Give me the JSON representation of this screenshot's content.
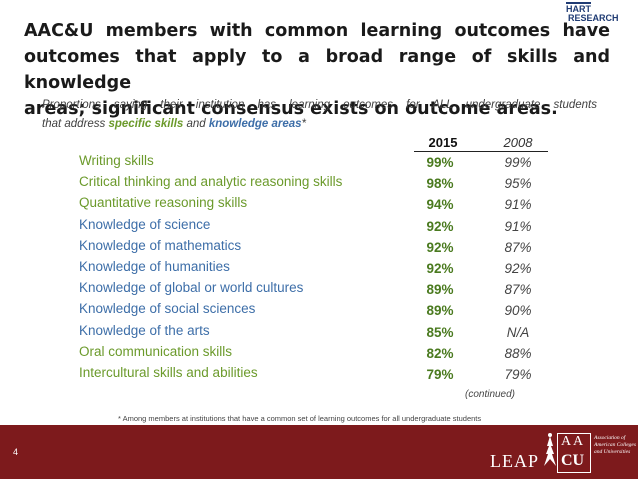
{
  "title": {
    "line1": "AAC&U members with common learning outcomes have",
    "line2": "outcomes that apply to a broad range of skills and knowledge",
    "line3": "areas; significant consensus exists on outcome areas."
  },
  "logo": {
    "hart": "HART",
    "research": "RESEARCH"
  },
  "subtitle": {
    "line1": "Proportions saying their institution has learning outcomes for ALL undergraduate students",
    "pre": "that address ",
    "skills": "specific skills",
    "mid": " and ",
    "knowledge": "knowledge areas",
    "post": "*"
  },
  "columns": {
    "y2015": "2015",
    "y2008": "2008"
  },
  "rows": [
    {
      "label": "Writing skills",
      "v2015": "99%",
      "v2008": "99%",
      "color": "#6b9a2b"
    },
    {
      "label": "Critical thinking and analytic reasoning skills",
      "v2015": "98%",
      "v2008": "95%",
      "color": "#6b9a2b"
    },
    {
      "label": "Quantitative reasoning skills",
      "v2015": "94%",
      "v2008": "91%",
      "color": "#6b9a2b"
    },
    {
      "label": "Knowledge of science",
      "v2015": "92%",
      "v2008": "91%",
      "color": "#3d6ea8"
    },
    {
      "label": "Knowledge of mathematics",
      "v2015": "92%",
      "v2008": "87%",
      "color": "#3d6ea8"
    },
    {
      "label": "Knowledge of humanities",
      "v2015": "92%",
      "v2008": "92%",
      "color": "#3d6ea8"
    },
    {
      "label": "Knowledge of global or world cultures",
      "v2015": "89%",
      "v2008": "87%",
      "color": "#3d6ea8"
    },
    {
      "label": "Knowledge of social sciences",
      "v2015": "89%",
      "v2008": "90%",
      "color": "#3d6ea8"
    },
    {
      "label": "Knowledge of the arts",
      "v2015": "85%",
      "v2008": "N/A",
      "color": "#3d6ea8"
    },
    {
      "label": "Oral communication skills",
      "v2015": "82%",
      "v2008": "88%",
      "color": "#6b9a2b"
    },
    {
      "label": "Intercultural skills and abilities",
      "v2015": "79%",
      "v2008": "79%",
      "color": "#6b9a2b"
    }
  ],
  "continued": "(continued)",
  "footnote": "* Among members at institutions that have a common set of learning outcomes for all undergraduate students",
  "footer": {
    "page_number": "4",
    "leap": "LEAP",
    "aacu_text": "Association of American Colleges and Universities",
    "bar_color": "#7d1a1c"
  }
}
